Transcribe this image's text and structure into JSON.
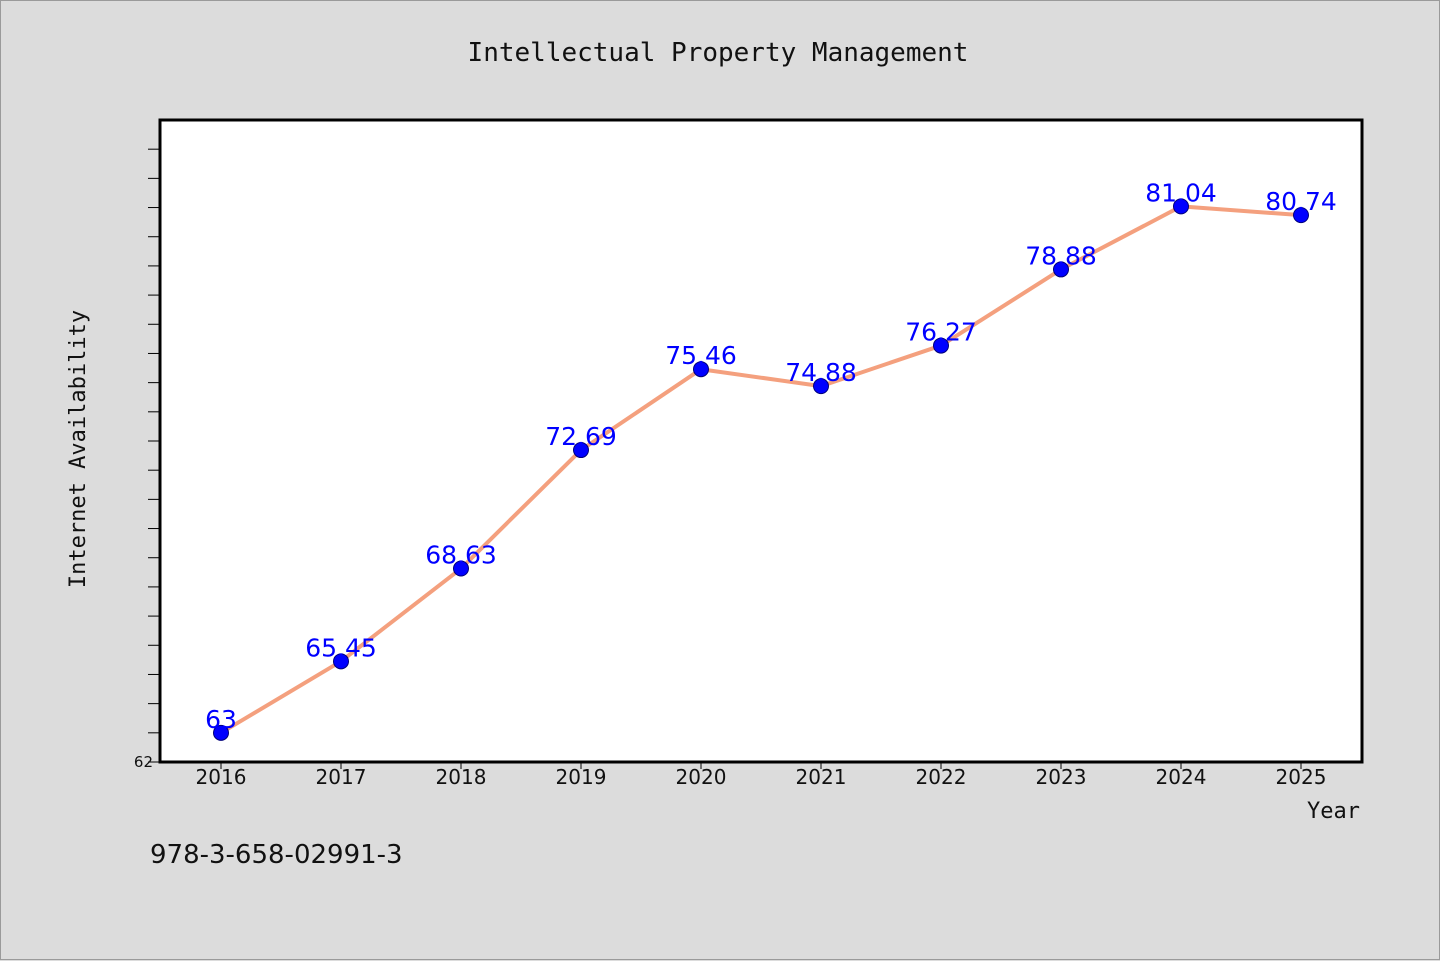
{
  "chart_data": {
    "type": "line",
    "title": "Intellectual Property Management",
    "xlabel": "Year",
    "ylabel": "Internet Availability",
    "categories": [
      "2016",
      "2017",
      "2018",
      "2019",
      "2020",
      "2021",
      "2022",
      "2023",
      "2024",
      "2025"
    ],
    "series": [
      {
        "values": [
          63,
          65.45,
          68.63,
          72.69,
          75.46,
          74.88,
          76.27,
          78.88,
          81.04,
          80.74
        ],
        "labels": [
          "63",
          "65.45",
          "68.63",
          "72.69",
          "75.46",
          "74.88",
          "76.27",
          "78.88",
          "81.04",
          "80.74"
        ]
      }
    ],
    "ylim": [
      62,
      84
    ],
    "y_tick_labels": [
      "62"
    ],
    "grid": false,
    "colors": {
      "line": "#f4a07e",
      "marker": "#0000ff",
      "data_label": "#0000ff",
      "plot_background": "#ffffff",
      "page_background": "#dcdcdc"
    }
  },
  "footer_text": "978-3-658-02991-3"
}
